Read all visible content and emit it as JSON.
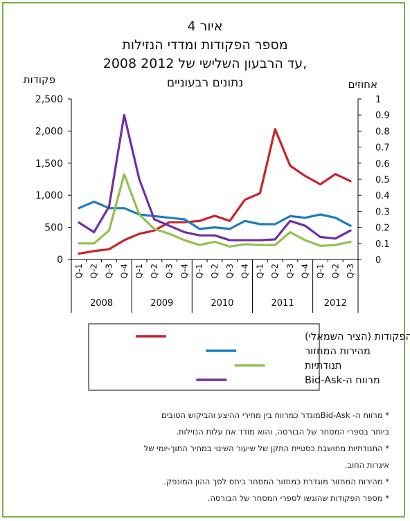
{
  "chart_data": {
    "type": "line",
    "title_lines": [
      "איור 4",
      "מספר הפקודות ומדדי הנזילות",
      "2008 עד הרבעון השלישי של 2012,",
      "נתונים רבעוניים"
    ],
    "left_axis_label": "פקודות",
    "right_axis_label": "אחוזים",
    "left_ticks": [
      "2,500",
      "2,000",
      "1,500",
      "1,000",
      "500",
      "0"
    ],
    "right_ticks": [
      "1",
      "0.9",
      "0.8",
      "0.7",
      "0.6",
      "0.5",
      "0.4",
      "0.3",
      "0.2",
      "0.1",
      "0"
    ],
    "left_ylim": [
      0,
      2500
    ],
    "right_ylim": [
      0,
      1
    ],
    "categories": [
      "Q-1",
      "Q-2",
      "Q-3",
      "Q-4",
      "Q-1",
      "Q-2",
      "Q-3",
      "Q-4",
      "Q-1",
      "Q-2",
      "Q-3",
      "Q-4",
      "Q-1",
      "Q-2",
      "Q-3",
      "Q-4",
      "Q-1",
      "Q-2",
      "Q-3"
    ],
    "tick_labels": [
      "Q-1",
      "Q-2",
      "Q-3",
      "Q-4",
      "Q-1",
      "Q-2",
      "Q-3",
      "Q-4",
      "Q-1",
      "Q-2",
      "Q-3",
      "Q-4",
      "Q-1",
      "Q-2",
      "Q-3",
      "Q-4",
      "Q-1",
      "Q-2",
      "Q-3"
    ],
    "year_groups": [
      {
        "label": "2008",
        "start": 0,
        "end": 3
      },
      {
        "label": "2009",
        "start": 4,
        "end": 7
      },
      {
        "label": "2010",
        "start": 8,
        "end": 11
      },
      {
        "label": "2011",
        "start": 12,
        "end": 15
      },
      {
        "label": "2012",
        "start": 16,
        "end": 18
      }
    ],
    "series": [
      {
        "name": "מספר הפקודות (הציר השמאלי)",
        "axis": "left",
        "color": "#c8232c",
        "values": [
          90,
          130,
          160,
          300,
          400,
          450,
          580,
          580,
          600,
          680,
          600,
          930,
          1030,
          2030,
          1460,
          1300,
          1170,
          1330,
          1220
        ]
      },
      {
        "name": "מהירות המחזור",
        "axis": "right",
        "color": "#1f7bbf",
        "values": [
          0.32,
          0.36,
          0.32,
          0.32,
          0.28,
          0.27,
          0.26,
          0.25,
          0.19,
          0.2,
          0.19,
          0.24,
          0.22,
          0.22,
          0.27,
          0.26,
          0.28,
          0.26,
          0.21
        ]
      },
      {
        "name": "תנודתיות",
        "axis": "right",
        "color": "#92c04f",
        "values": [
          0.1,
          0.1,
          0.18,
          0.53,
          0.28,
          0.19,
          0.16,
          0.12,
          0.09,
          0.11,
          0.08,
          0.095,
          0.09,
          0.09,
          0.17,
          0.12,
          0.085,
          0.09,
          0.11
        ]
      },
      {
        "name": "מרווח ה-Bid-Ask",
        "axis": "right",
        "color": "#7030a0",
        "values": [
          0.23,
          0.17,
          0.33,
          0.9,
          0.5,
          0.25,
          0.21,
          0.17,
          0.15,
          0.15,
          0.12,
          0.12,
          0.12,
          0.125,
          0.24,
          0.21,
          0.14,
          0.13,
          0.18
        ]
      }
    ],
    "legend_placement": "below chart"
  },
  "notes": [
    "* מרווח ה-  Bid-Askמוגדר כמרווח בין מחירי ההיצע והביקוש הטובים",
    "ביותר בספרי המסחר של הבורסה, והוא מודד את עלות הנזילות.",
    "* התנודתיות מחושבת כסטיית התקן של שיעור השינוי במחיר התוך-יומי של",
    "איגרות החוב.",
    "* מהירות המחזור מוגדרת כמחזור המסחר ביחס לסך ההון המונפק.",
    "* מספר הפקודות שהוגשו לספרי המסחר של הבורסה."
  ]
}
